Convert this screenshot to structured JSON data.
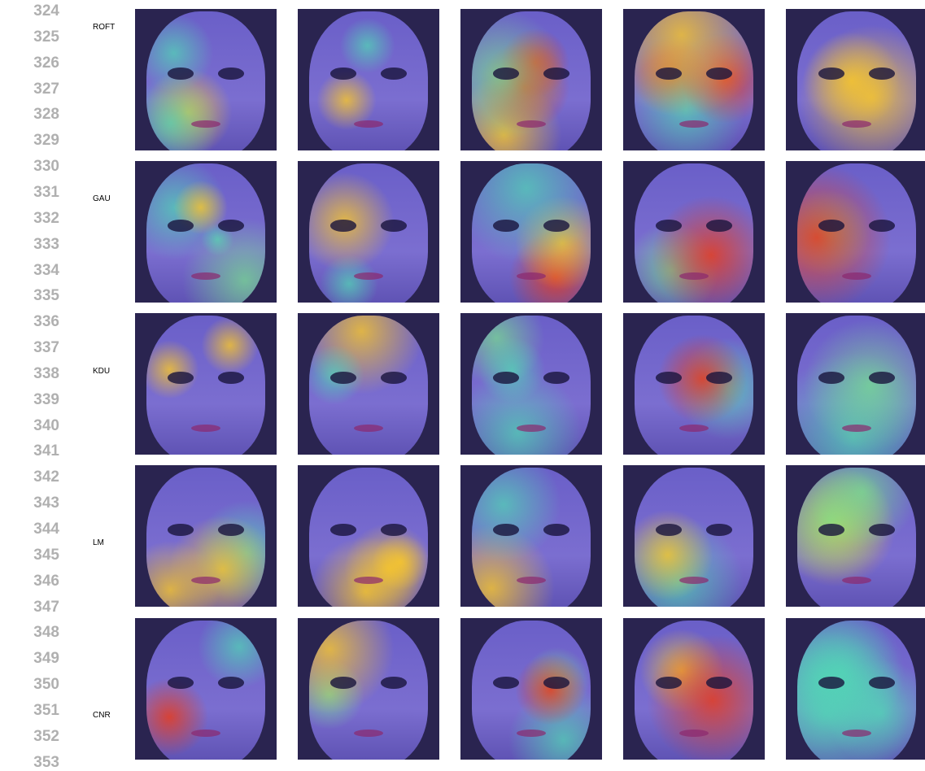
{
  "line_numbers": [
    324,
    325,
    326,
    327,
    328,
    329,
    330,
    331,
    332,
    333,
    334,
    335,
    336,
    337,
    338,
    339,
    340,
    341,
    342,
    343,
    344,
    345,
    346,
    347,
    348,
    349,
    350,
    351,
    352,
    353
  ],
  "figure": {
    "rows": [
      {
        "label": "ROFT"
      },
      {
        "label": "GAU"
      },
      {
        "label": "KDU"
      },
      {
        "label": "LM"
      },
      {
        "label": "CNR"
      }
    ]
  }
}
